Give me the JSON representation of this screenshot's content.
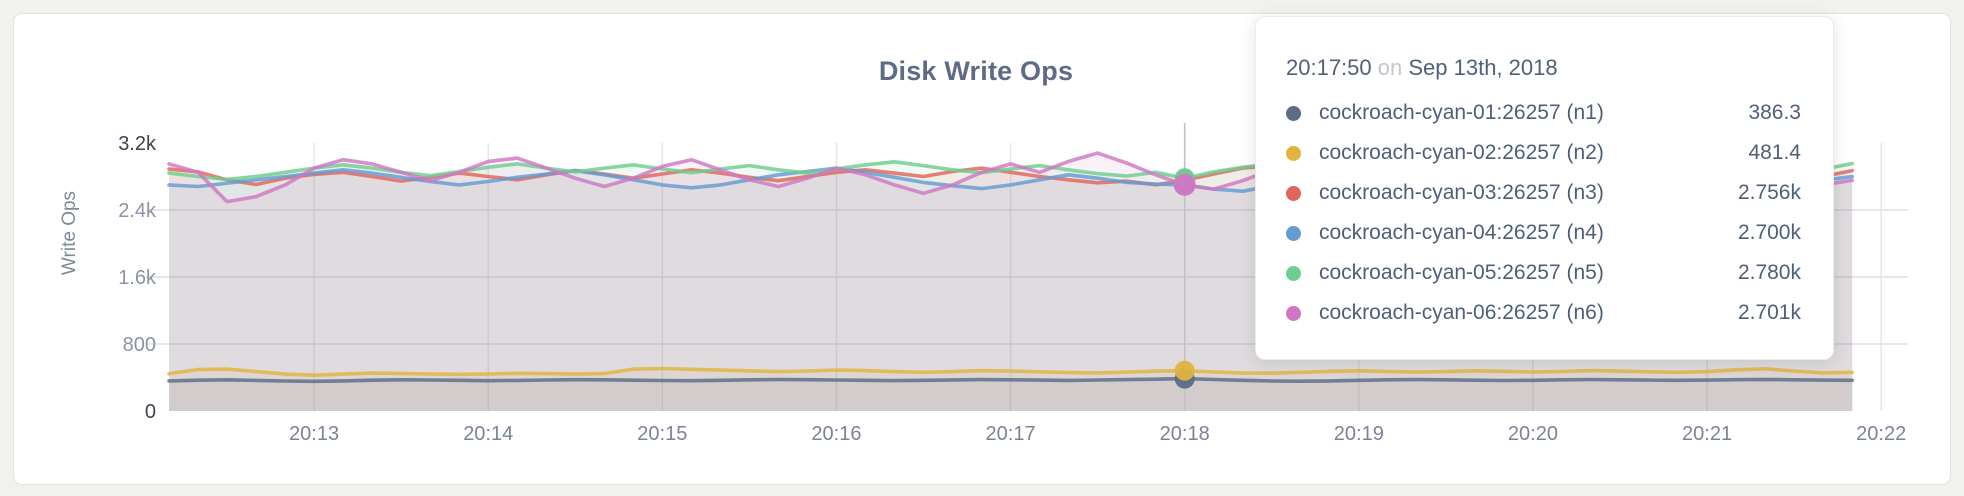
{
  "card": {
    "title": "Disk Write Ops"
  },
  "tooltip": {
    "time": "20:17:50",
    "on_word": "on",
    "date": "Sep 13th, 2018",
    "rows": [
      {
        "name": "cockroach-cyan-01:26257 (n1)",
        "value": "386.3",
        "color": "#5c6b87"
      },
      {
        "name": "cockroach-cyan-02:26257 (n2)",
        "value": "481.4",
        "color": "#e2b33f"
      },
      {
        "name": "cockroach-cyan-03:26257 (n3)",
        "value": "2.756k",
        "color": "#e0655c"
      },
      {
        "name": "cockroach-cyan-04:26257 (n4)",
        "value": "2.700k",
        "color": "#649bd3"
      },
      {
        "name": "cockroach-cyan-05:26257 (n5)",
        "value": "2.780k",
        "color": "#6ecd8f"
      },
      {
        "name": "cockroach-cyan-06:26257 (n6)",
        "value": "2.701k",
        "color": "#d077c4"
      }
    ]
  },
  "chart_data": {
    "type": "line",
    "title": "Disk Write Ops",
    "xlabel": "",
    "ylabel": "Write Ops",
    "ylim": [
      0,
      3200
    ],
    "x_start_time": "20:12:10",
    "x_step_seconds": 10,
    "x_tick_labels": [
      "20:13",
      "20:14",
      "20:15",
      "20:16",
      "20:17",
      "20:18",
      "20:19",
      "20:20",
      "20:21",
      "20:22"
    ],
    "y_ticks": [
      {
        "label": "0",
        "value": 0,
        "strong": true,
        "grid": false
      },
      {
        "label": "800",
        "value": 800,
        "strong": false,
        "grid": true
      },
      {
        "label": "1.6k",
        "value": 1600,
        "strong": false,
        "grid": true
      },
      {
        "label": "2.4k",
        "value": 2400,
        "strong": false,
        "grid": true
      },
      {
        "label": "3.2k",
        "value": 3200,
        "strong": true,
        "grid": false
      }
    ],
    "hover": {
      "time": "20:17:50",
      "index": 35
    },
    "series": [
      {
        "name": "cockroach-cyan-01:26257 (n1)",
        "short": "n1",
        "color": "#5c6b87",
        "hover_value": 386.3,
        "values": [
          360,
          368,
          372,
          365,
          358,
          355,
          360,
          368,
          372,
          370,
          366,
          362,
          365,
          370,
          374,
          372,
          368,
          364,
          362,
          366,
          372,
          376,
          374,
          370,
          366,
          363,
          366,
          371,
          375,
          373,
          369,
          365,
          370,
          375,
          380,
          386.3,
          376,
          366,
          358,
          356,
          360,
          366,
          372,
          375,
          372,
          368,
          364,
          367,
          372,
          376,
          373,
          369,
          366,
          369,
          374,
          377,
          373,
          369,
          367
        ]
      },
      {
        "name": "cockroach-cyan-02:26257 (n2)",
        "short": "n2",
        "color": "#e2b33f",
        "hover_value": 481.4,
        "values": [
          445,
          495,
          500,
          470,
          440,
          428,
          440,
          452,
          448,
          442,
          438,
          442,
          450,
          446,
          440,
          448,
          500,
          508,
          498,
          488,
          480,
          470,
          478,
          490,
          482,
          470,
          462,
          470,
          482,
          476,
          468,
          460,
          455,
          465,
          476,
          481.4,
          466,
          455,
          452,
          462,
          474,
          480,
          472,
          464,
          470,
          480,
          474,
          466,
          472,
          482,
          476,
          468,
          462,
          470,
          492,
          504,
          478,
          455,
          462
        ]
      },
      {
        "name": "cockroach-cyan-03:26257 (n3)",
        "short": "n3",
        "color": "#e0655c",
        "hover_value": 2756,
        "values": [
          2890,
          2855,
          2760,
          2705,
          2780,
          2825,
          2850,
          2800,
          2745,
          2790,
          2840,
          2800,
          2760,
          2820,
          2870,
          2830,
          2780,
          2830,
          2880,
          2840,
          2790,
          2750,
          2800,
          2850,
          2880,
          2840,
          2800,
          2860,
          2900,
          2850,
          2800,
          2760,
          2725,
          2745,
          2700,
          2756,
          2830,
          2900,
          2930,
          2860,
          2800,
          2760,
          2810,
          2860,
          2820,
          2780,
          2745,
          2790,
          2840,
          2800,
          2760,
          2800,
          2850,
          2890,
          2840,
          2790,
          2755,
          2800,
          2870
        ]
      },
      {
        "name": "cockroach-cyan-04:26257 (n4)",
        "short": "n4",
        "color": "#649bd3",
        "hover_value": 2700,
        "values": [
          2700,
          2680,
          2720,
          2760,
          2800,
          2840,
          2880,
          2840,
          2790,
          2740,
          2700,
          2740,
          2790,
          2830,
          2870,
          2820,
          2760,
          2700,
          2665,
          2700,
          2760,
          2820,
          2860,
          2900,
          2850,
          2790,
          2730,
          2690,
          2655,
          2700,
          2760,
          2820,
          2780,
          2730,
          2710,
          2700,
          2650,
          2625,
          2690,
          2760,
          2830,
          2880,
          2830,
          2770,
          2725,
          2760,
          2810,
          2850,
          2800,
          2750,
          2715,
          2760,
          2820,
          2865,
          2820,
          2760,
          2715,
          2755,
          2800
        ]
      },
      {
        "name": "cockroach-cyan-05:26257 (n5)",
        "short": "n5",
        "color": "#6ecd8f",
        "hover_value": 2780,
        "values": [
          2840,
          2800,
          2765,
          2800,
          2850,
          2900,
          2940,
          2900,
          2850,
          2810,
          2860,
          2910,
          2950,
          2900,
          2855,
          2900,
          2940,
          2890,
          2845,
          2890,
          2930,
          2880,
          2840,
          2890,
          2940,
          2975,
          2930,
          2880,
          2845,
          2890,
          2930,
          2880,
          2835,
          2805,
          2850,
          2780,
          2855,
          2910,
          2950,
          2900,
          2855,
          2900,
          2945,
          2900,
          2855,
          2900,
          2940,
          2890,
          2845,
          2890,
          2930,
          2880,
          2840,
          2890,
          2930,
          2880,
          2835,
          2885,
          2955
        ]
      },
      {
        "name": "cockroach-cyan-06:26257 (n6)",
        "short": "n6",
        "color": "#d077c4",
        "hover_value": 2701,
        "values": [
          2950,
          2850,
          2500,
          2560,
          2700,
          2900,
          3000,
          2950,
          2850,
          2750,
          2850,
          2980,
          3020,
          2900,
          2780,
          2680,
          2780,
          2920,
          3000,
          2880,
          2760,
          2680,
          2780,
          2900,
          2820,
          2700,
          2600,
          2700,
          2850,
          2950,
          2850,
          2980,
          3080,
          2960,
          2820,
          2701,
          2650,
          2750,
          2880,
          2820,
          2700,
          2620,
          2720,
          2850,
          2920,
          2820,
          2720,
          2655,
          2750,
          2870,
          2930,
          2830,
          2730,
          2685,
          2780,
          2900,
          2820,
          2700,
          2755
        ]
      }
    ]
  }
}
